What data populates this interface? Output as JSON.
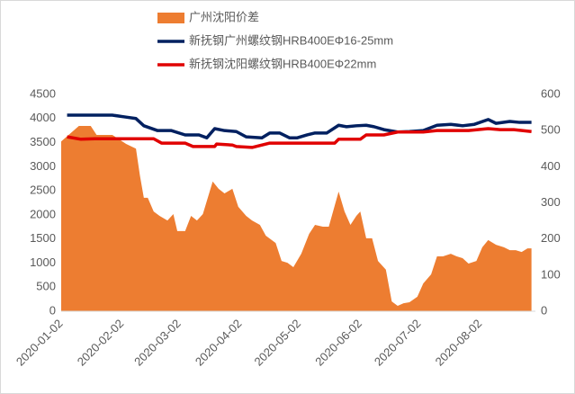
{
  "chart_data": {
    "type": "combo",
    "xlim": [
      "2020-01-02",
      "2020-08-30"
    ],
    "xticks": [
      "2020-01-02",
      "2020-02-02",
      "2020-03-02",
      "2020-04-02",
      "2020-05-02",
      "2020-06-02",
      "2020-07-02",
      "2020-08-02"
    ],
    "ylim": [
      0,
      4500
    ],
    "yticks": [
      0,
      500,
      1000,
      1500,
      2000,
      2500,
      3000,
      3500,
      4000,
      4500
    ],
    "y2lim": [
      0,
      600
    ],
    "y2ticks": [
      0,
      100,
      200,
      300,
      400,
      500,
      600
    ],
    "series": [
      {
        "name": "广州沈阳价差",
        "type": "area",
        "axis": "y2",
        "color": "#ED7D31",
        "x": [
          "2020-01-02",
          "2020-01-11",
          "2020-01-17",
          "2020-01-20",
          "2020-01-28",
          "2020-02-04",
          "2020-02-09",
          "2020-02-11",
          "2020-02-13",
          "2020-02-15",
          "2020-02-18",
          "2020-02-21",
          "2020-02-25",
          "2020-02-28",
          "2020-03-01",
          "2020-03-05",
          "2020-03-08",
          "2020-03-11",
          "2020-03-14",
          "2020-03-19",
          "2020-03-22",
          "2020-03-25",
          "2020-03-29",
          "2020-04-01",
          "2020-04-05",
          "2020-04-08",
          "2020-04-12",
          "2020-04-15",
          "2020-04-20",
          "2020-04-23",
          "2020-04-26",
          "2020-04-29",
          "2020-05-03",
          "2020-05-07",
          "2020-05-10",
          "2020-05-14",
          "2020-05-17",
          "2020-05-22",
          "2020-05-25",
          "2020-05-28",
          "2020-05-31",
          "2020-06-02",
          "2020-06-05",
          "2020-06-08",
          "2020-06-11",
          "2020-06-15",
          "2020-06-18",
          "2020-06-21",
          "2020-06-24",
          "2020-06-27",
          "2020-07-01",
          "2020-07-04",
          "2020-07-08",
          "2020-07-11",
          "2020-07-14",
          "2020-07-18",
          "2020-07-21",
          "2020-07-24",
          "2020-07-27",
          "2020-07-31",
          "2020-08-03",
          "2020-08-06",
          "2020-08-10",
          "2020-08-14",
          "2020-08-17",
          "2020-08-20",
          "2020-08-23",
          "2020-08-26",
          "2020-08-28"
        ],
        "values": [
          470,
          513,
          513,
          488,
          488,
          463,
          450,
          376,
          314,
          314,
          276,
          264,
          251,
          269,
          222,
          222,
          264,
          251,
          269,
          359,
          339,
          326,
          339,
          289,
          264,
          251,
          239,
          209,
          189,
          139,
          134,
          122,
          159,
          214,
          239,
          234,
          234,
          331,
          276,
          239,
          264,
          276,
          202,
          202,
          139,
          115,
          27,
          15,
          22,
          25,
          40,
          77,
          102,
          152,
          152,
          159,
          152,
          147,
          132,
          139,
          177,
          197,
          184,
          177,
          169,
          169,
          164,
          174,
          174
        ]
      },
      {
        "name": "新抚钢广州螺纹钢HRB400EΦ16-25mm",
        "type": "line",
        "axis": "y",
        "color": "#002060",
        "x": [
          "2020-01-05",
          "2020-01-28",
          "2020-02-04",
          "2020-02-09",
          "2020-02-13",
          "2020-02-20",
          "2020-02-27",
          "2020-03-05",
          "2020-03-12",
          "2020-03-16",
          "2020-03-20",
          "2020-03-25",
          "2020-03-31",
          "2020-04-05",
          "2020-04-13",
          "2020-04-17",
          "2020-04-22",
          "2020-04-27",
          "2020-05-01",
          "2020-05-06",
          "2020-05-10",
          "2020-05-16",
          "2020-05-22",
          "2020-05-26",
          "2020-05-31",
          "2020-06-05",
          "2020-06-09",
          "2020-06-14",
          "2020-06-21",
          "2020-06-27",
          "2020-07-04",
          "2020-07-11",
          "2020-07-18",
          "2020-07-24",
          "2020-07-30",
          "2020-08-06",
          "2020-08-10",
          "2020-08-17",
          "2020-08-22",
          "2020-08-28"
        ],
        "values": [
          4070,
          4070,
          4030,
          4000,
          3850,
          3750,
          3750,
          3660,
          3660,
          3600,
          3790,
          3750,
          3730,
          3620,
          3600,
          3700,
          3700,
          3600,
          3600,
          3660,
          3700,
          3700,
          3860,
          3830,
          3850,
          3860,
          3830,
          3770,
          3720,
          3730,
          3750,
          3860,
          3880,
          3850,
          3880,
          3980,
          3900,
          3940,
          3920,
          3920
        ]
      },
      {
        "name": "新抚钢沈阳螺纹钢HRB400EΦ22mm",
        "type": "line",
        "axis": "y",
        "color": "#E00000",
        "x": [
          "2020-01-05",
          "2020-01-12",
          "2020-01-19",
          "2020-01-28",
          "2020-02-04",
          "2020-02-13",
          "2020-02-18",
          "2020-02-22",
          "2020-03-05",
          "2020-03-09",
          "2020-03-20",
          "2020-03-21",
          "2020-03-29",
          "2020-03-31",
          "2020-04-08",
          "2020-04-17",
          "2020-05-01",
          "2020-05-20",
          "2020-05-22",
          "2020-06-02",
          "2020-06-05",
          "2020-06-14",
          "2020-06-21",
          "2020-07-04",
          "2020-07-11",
          "2020-07-27",
          "2020-08-06",
          "2020-08-12",
          "2020-08-19",
          "2020-08-28"
        ],
        "values": [
          3620,
          3570,
          3580,
          3580,
          3580,
          3580,
          3580,
          3490,
          3490,
          3420,
          3420,
          3470,
          3450,
          3420,
          3400,
          3490,
          3490,
          3490,
          3570,
          3570,
          3660,
          3660,
          3720,
          3720,
          3750,
          3750,
          3790,
          3770,
          3770,
          3730
        ]
      }
    ]
  }
}
